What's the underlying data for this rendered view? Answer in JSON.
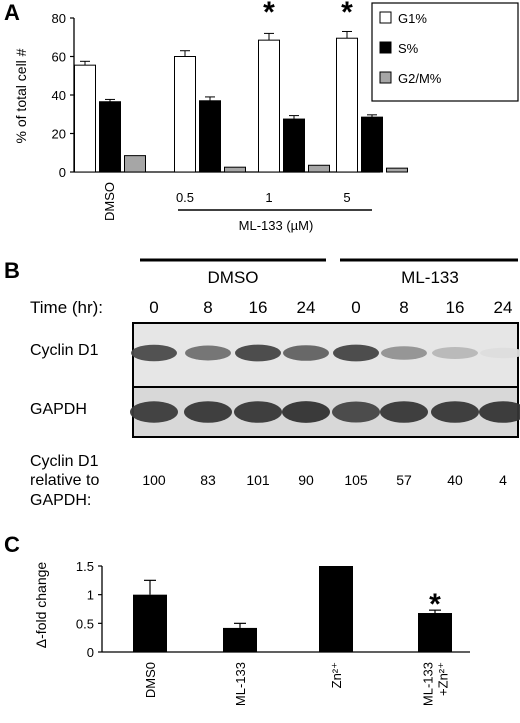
{
  "panel_a": {
    "letter": "A",
    "ylabel": "% of total cell #",
    "ylim": [
      0,
      80
    ],
    "yticks": [
      "0",
      "20",
      "40",
      "60",
      "80"
    ],
    "categories": [
      "DMSO",
      "0.5",
      "1",
      "5"
    ],
    "group_label": "ML-133 (µM)",
    "significance": [
      "",
      "",
      "*",
      "*"
    ],
    "legend": [
      "G1%",
      "S%",
      "G2/M%"
    ],
    "colors": [
      "#ffffff",
      "#000000",
      "#a6a6a6"
    ]
  },
  "panel_b": {
    "letter": "B",
    "groups": [
      "DMSO",
      "ML-133"
    ],
    "time_label": "Time (hr):",
    "times": [
      "0",
      "8",
      "16",
      "24",
      "0",
      "8",
      "16",
      "24"
    ],
    "rows": [
      "Cyclin D1",
      "GAPDH"
    ],
    "quant_label": [
      "Cyclin D1",
      "relative to",
      "GAPDH:"
    ],
    "quant_values": [
      "100",
      "83",
      "101",
      "90",
      "105",
      "57",
      "40",
      "4"
    ],
    "cyclin_intensity": [
      0.82,
      0.62,
      0.85,
      0.7,
      0.85,
      0.45,
      0.25,
      0.05
    ],
    "gapdh_intensity": [
      0.9,
      0.92,
      0.92,
      0.95,
      0.85,
      0.92,
      0.92,
      0.93
    ]
  },
  "panel_c": {
    "letter": "C",
    "ylabel": "Δ-fold change",
    "yticks": [
      "0",
      "0.5",
      "1",
      "1.5"
    ],
    "ylim": [
      0,
      1.5
    ],
    "categories": [
      "DMS0",
      "ML-133",
      "Zn²⁺",
      "ML-133\n+Zn²⁺"
    ],
    "significance": [
      "",
      "",
      "",
      "*"
    ]
  },
  "chart_data": [
    {
      "type": "bar",
      "categories": [
        "DMSO",
        "0.5",
        "1",
        "5"
      ],
      "xlabel": "ML-133 (µM)",
      "ylabel": "% of total cell #",
      "ylim": [
        0,
        80
      ],
      "legend_position": "top-right",
      "series": [
        {
          "name": "G1%",
          "values": [
            55.5,
            60,
            68.5,
            69.5
          ],
          "errors": [
            2,
            3,
            3.5,
            3.5
          ]
        },
        {
          "name": "S%",
          "values": [
            36.5,
            37,
            27.5,
            28.5
          ],
          "errors": [
            1.2,
            2,
            1.8,
            1.2
          ]
        },
        {
          "name": "G2/M%",
          "values": [
            8.5,
            2.5,
            3.5,
            2
          ]
        }
      ]
    },
    {
      "type": "table",
      "categories": [
        "0",
        "8",
        "16",
        "24",
        "0",
        "8",
        "16",
        "24"
      ],
      "groups": [
        "DMSO",
        "ML-133"
      ],
      "series": [
        {
          "name": "Cyclin D1 relative to GAPDH:",
          "values": [
            100,
            83,
            101,
            90,
            105,
            57,
            40,
            4
          ]
        }
      ]
    },
    {
      "type": "bar",
      "categories": [
        "DMS0",
        "ML-133",
        "Zn²⁺",
        "ML-133 +Zn²⁺"
      ],
      "ylabel": "Δ-fold change",
      "ylim": [
        0,
        1.5
      ],
      "series": [
        {
          "values": [
            1.0,
            0.42,
            1.5,
            0.68
          ],
          "errors": [
            0.25,
            0.08,
            0,
            0.05
          ]
        }
      ]
    }
  ]
}
